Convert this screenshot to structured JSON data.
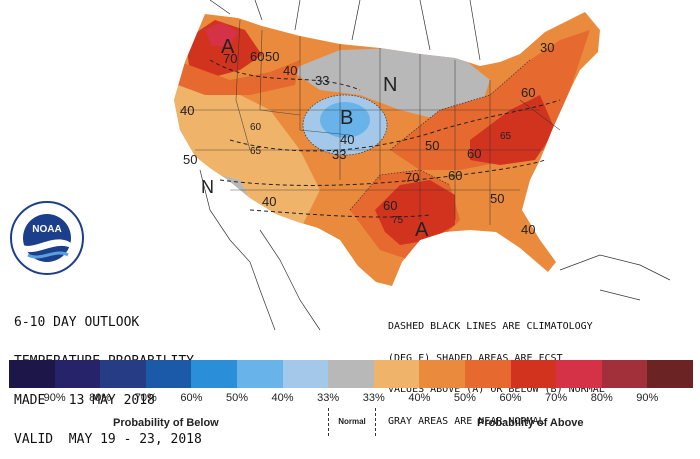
{
  "product": {
    "title_lines": [
      "6-10 DAY OUTLOOK",
      "TEMPERATURE PROBABILITY",
      "MADE   13 MAY 2018",
      "VALID  MAY 19 - 23, 2018"
    ]
  },
  "legend_note_lines": [
    "DASHED BLACK LINES ARE CLIMATOLOGY",
    "(DEG F) SHADED AREAS ARE FCST",
    "VALUES ABOVE (A) OR BELOW (B) NORMAL",
    "GRAY AREAS ARE NEAR-NORMAL"
  ],
  "map_labels": {
    "above_nw": "A",
    "above_south": "A",
    "below_center": "B",
    "normal_great_lakes": "N",
    "normal_southwest": "N",
    "c70_nw": "70",
    "c60_nw": "60",
    "c50_nw": "50",
    "c40_mt": "40",
    "c33_plains": "33",
    "c40_center": "40",
    "c33_center": "33",
    "c40_west": "40",
    "c50_west": "50",
    "c60_west": "60",
    "c65_nv": "65",
    "c40_sw": "40",
    "c50_east": "50",
    "c60_east": "60",
    "c65_east": "65",
    "c60_mid": "60",
    "c70_tx": "70",
    "c75_tx": "75",
    "c60_tx": "60",
    "c50_se": "50",
    "c40_fl": "40",
    "c30_ne": "30",
    "c60_ne": "60"
  },
  "legend": {
    "colors": [
      "#1d1648",
      "#27236a",
      "#263d86",
      "#1a5aa8",
      "#2a8fd8",
      "#68b4ea",
      "#a4c8ea",
      "#b8b8b8",
      "#f0b36a",
      "#ea8a3c",
      "#e66930",
      "#d2331f",
      "#d63247",
      "#a2303a",
      "#6c2323"
    ],
    "percent_labels": [
      "90%",
      "80%",
      "70%",
      "60%",
      "50%",
      "40%",
      "33%",
      "33%",
      "40%",
      "50%",
      "60%",
      "70%",
      "80%",
      "90%"
    ],
    "below_caption": "Probability of Below",
    "normal_caption": "Normal",
    "above_caption": "Probability of Above"
  },
  "logo": {
    "center_text": "NOAA"
  }
}
